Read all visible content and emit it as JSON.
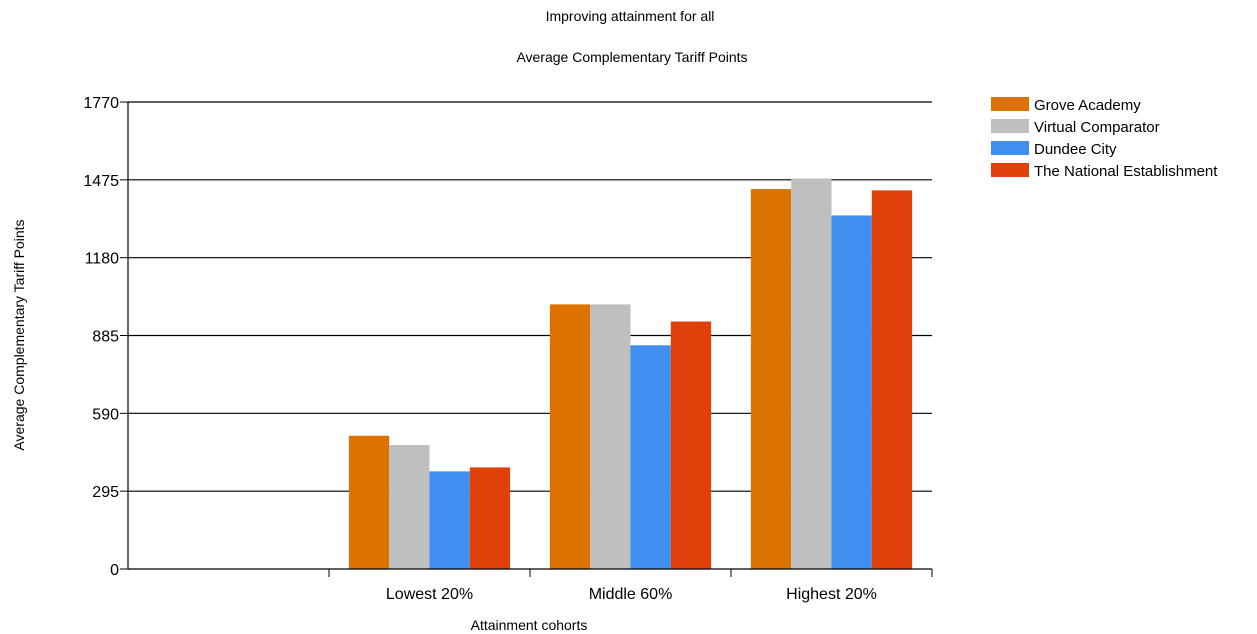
{
  "chart_data": {
    "type": "bar",
    "title": "Improving attainment for all",
    "subtitle": "Average Complementary Tariff Points",
    "xlabel": "Attainment cohorts",
    "ylabel": "Average Complementary Tariff Points",
    "ylim": [
      0,
      1770
    ],
    "yticks": [
      0,
      295,
      590,
      885,
      1180,
      1475,
      1770
    ],
    "grid": "horizontal",
    "legend": "top-right",
    "categories": [
      "Lowest 20%",
      "Middle 60%",
      "Highest 20%"
    ],
    "series": [
      {
        "name": "Grove Academy",
        "color": "#dc7300",
        "values": [
          505,
          1003,
          1440
        ]
      },
      {
        "name": "Virtual Comparator",
        "color": "#bfbfbf",
        "values": [
          470,
          1003,
          1480
        ]
      },
      {
        "name": "Dundee City",
        "color": "#3f8ef0",
        "values": [
          370,
          848,
          1340
        ]
      },
      {
        "name": "The National Establishment",
        "color": "#e0400a",
        "values": [
          385,
          938,
          1435
        ]
      }
    ]
  }
}
